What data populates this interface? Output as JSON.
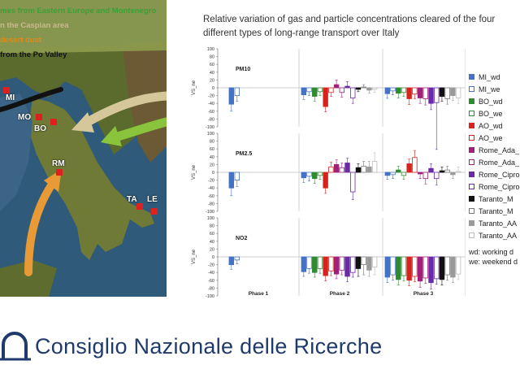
{
  "map_panel": {
    "legend_lines": [
      {
        "text": "mes from Eastern Europe and Montenegro",
        "color": "#3aa034"
      },
      {
        "text": "n the Caspian area",
        "color": "#c9b98f"
      },
      {
        "text": "desert dust",
        "color": "#e08a17"
      },
      {
        "text": " from the Po Valley",
        "color": "#111111"
      }
    ],
    "cities": [
      "MI",
      "MO",
      "BO",
      "RM",
      "TA",
      "LE"
    ],
    "arrow_colors": {
      "eastern_europe": "#8ac43c",
      "caspian": "#d6c79a",
      "desert_dust": "#e79a36",
      "po_valley": "#111111"
    }
  },
  "title": "Relative variation of gas and particle concentrations cleared of the four different types of long-range transport over Italy",
  "footer": {
    "organization": "Consiglio Nazionale delle Ricerche",
    "color": "#1f3a6d"
  },
  "chart_data": {
    "type": "bar",
    "title": "Relative variation of gas and particle concentrations cleared of the four different types of long-range transport over Italy",
    "ylabel": "VS_ne",
    "ylim": [
      -100,
      100
    ],
    "yticks": [
      100,
      80,
      60,
      40,
      20,
      0,
      -20,
      -40,
      -60,
      -80,
      -100
    ],
    "categories": [
      "Phase 1",
      "Phase 2",
      "Phase 3"
    ],
    "panels": [
      {
        "name": "PM10",
        "series": [
          {
            "name": "MI_wd",
            "values": [
              -42,
              -18,
              -15
            ],
            "err": [
              18,
              12,
              12
            ]
          },
          {
            "name": "MI_we",
            "values": [
              -20,
              -10,
              -8
            ],
            "err": [
              15,
              10,
              10
            ]
          },
          {
            "name": "BO_wd",
            "values": [
              null,
              -22,
              -14
            ],
            "err": [
              0,
              12,
              12
            ]
          },
          {
            "name": "BO_we",
            "values": [
              null,
              -10,
              -12
            ],
            "err": [
              0,
              10,
              10
            ]
          },
          {
            "name": "AO_wd",
            "values": [
              null,
              -48,
              -28
            ],
            "err": [
              0,
              14,
              15
            ]
          },
          {
            "name": "AO_we",
            "values": [
              null,
              -12,
              -16
            ],
            "err": [
              0,
              10,
              12
            ]
          },
          {
            "name": "Rome_Ada_wd",
            "values": [
              null,
              8,
              -26
            ],
            "err": [
              0,
              12,
              14
            ]
          },
          {
            "name": "Rome_Ada_we",
            "values": [
              null,
              -12,
              -28
            ],
            "err": [
              0,
              12,
              16
            ]
          },
          {
            "name": "Rome_Cipro_wd",
            "values": [
              null,
              4,
              -40
            ],
            "err": [
              0,
              12,
              16
            ]
          },
          {
            "name": "Rome_Cipro_we",
            "values": [
              null,
              -26,
              -38
            ],
            "err": [
              0,
              14,
              120
            ]
          },
          {
            "name": "Taranto_MV_wd",
            "values": [
              null,
              -4,
              -22
            ],
            "err": [
              0,
              6,
              12
            ]
          },
          {
            "name": "Taranto_MV_we",
            "values": [
              null,
              2,
              -28
            ],
            "err": [
              0,
              6,
              14
            ]
          },
          {
            "name": "Taranto_AA_wd",
            "values": [
              null,
              -6,
              -20
            ],
            "err": [
              0,
              8,
              12
            ]
          },
          {
            "name": "Taranto_AA_we",
            "values": [
              null,
              -4,
              -26
            ],
            "err": [
              0,
              8,
              14
            ]
          }
        ]
      },
      {
        "name": "PM2.5",
        "series": [
          {
            "name": "MI_wd",
            "values": [
              -40,
              -14,
              -8
            ],
            "err": [
              20,
              12,
              10
            ]
          },
          {
            "name": "MI_we",
            "values": [
              -20,
              -10,
              -6
            ],
            "err": [
              16,
              12,
              10
            ]
          },
          {
            "name": "BO_wd",
            "values": [
              null,
              -16,
              6
            ],
            "err": [
              0,
              12,
              10
            ]
          },
          {
            "name": "BO_we",
            "values": [
              null,
              -8,
              -8
            ],
            "err": [
              0,
              10,
              10
            ]
          },
          {
            "name": "AO_wd",
            "values": [
              null,
              -40,
              22
            ],
            "err": [
              0,
              14,
              12
            ]
          },
          {
            "name": "AO_we",
            "values": [
              null,
              14,
              38
            ],
            "err": [
              0,
              12,
              18
            ]
          },
          {
            "name": "Rome_Ada_wd",
            "values": [
              null,
              20,
              -4
            ],
            "err": [
              0,
              12,
              12
            ]
          },
          {
            "name": "Rome_Ada_we",
            "values": [
              null,
              12,
              -16
            ],
            "err": [
              0,
              12,
              14
            ]
          },
          {
            "name": "Rome_Cipro_wd",
            "values": [
              null,
              24,
              10
            ],
            "err": [
              0,
              12,
              12
            ]
          },
          {
            "name": "Rome_Cipro_we",
            "values": [
              null,
              -50,
              -16
            ],
            "err": [
              0,
              20,
              16
            ]
          },
          {
            "name": "Taranto_MV_wd",
            "values": [
              null,
              12,
              4
            ],
            "err": [
              0,
              10,
              10
            ]
          },
          {
            "name": "Taranto_MV_we",
            "values": [
              null,
              16,
              6
            ],
            "err": [
              0,
              12,
              10
            ]
          },
          {
            "name": "Taranto_AA_wd",
            "values": [
              null,
              14,
              -6
            ],
            "err": [
              0,
              14,
              10
            ]
          },
          {
            "name": "Taranto_AA_we",
            "values": [
              null,
              28,
              2
            ],
            "err": [
              0,
              22,
              12
            ]
          }
        ]
      },
      {
        "name": "NO2",
        "series": [
          {
            "name": "MI_wd",
            "values": [
              -20,
              -38,
              -52
            ],
            "err": [
              12,
              12,
              14
            ]
          },
          {
            "name": "MI_we",
            "values": [
              -8,
              -30,
              -46
            ],
            "err": [
              10,
              12,
              14
            ]
          },
          {
            "name": "BO_wd",
            "values": [
              null,
              -40,
              -58
            ],
            "err": [
              0,
              12,
              14
            ]
          },
          {
            "name": "BO_we",
            "values": [
              null,
              -30,
              -48
            ],
            "err": [
              0,
              12,
              14
            ]
          },
          {
            "name": "AO_wd",
            "values": [
              null,
              -48,
              -60
            ],
            "err": [
              0,
              14,
              14
            ]
          },
          {
            "name": "AO_we",
            "values": [
              null,
              -36,
              -50
            ],
            "err": [
              0,
              12,
              14
            ]
          },
          {
            "name": "Rome_Ada_wd",
            "values": [
              null,
              -44,
              -62
            ],
            "err": [
              0,
              12,
              16
            ]
          },
          {
            "name": "Rome_Ada_we",
            "values": [
              null,
              -34,
              -54
            ],
            "err": [
              0,
              12,
              14
            ]
          },
          {
            "name": "Rome_Cipro_wd",
            "values": [
              null,
              -50,
              -66
            ],
            "err": [
              0,
              14,
              16
            ]
          },
          {
            "name": "Rome_Cipro_we",
            "values": [
              null,
              -40,
              -56
            ],
            "err": [
              0,
              12,
              14
            ]
          },
          {
            "name": "Taranto_MV_wd",
            "values": [
              null,
              -30,
              -58
            ],
            "err": [
              0,
              20,
              14
            ]
          },
          {
            "name": "Taranto_MV_we",
            "values": [
              null,
              -20,
              -46
            ],
            "err": [
              0,
              26,
              14
            ]
          },
          {
            "name": "Taranto_AA_wd",
            "values": [
              null,
              -34,
              -52
            ],
            "err": [
              0,
              16,
              14
            ]
          },
          {
            "name": "Taranto_AA_we",
            "values": [
              null,
              -26,
              -44
            ],
            "err": [
              0,
              20,
              14
            ]
          }
        ]
      }
    ],
    "legend": [
      {
        "label": "MI_wd",
        "color": "#4472c4",
        "hollow": false
      },
      {
        "label": "MI_we",
        "color": "#4472c4",
        "hollow": true
      },
      {
        "label": "BO_wd",
        "color": "#2e8b2e",
        "hollow": false
      },
      {
        "label": "BO_we",
        "color": "#2e8b2e",
        "hollow": true
      },
      {
        "label": "AO_wd",
        "color": "#d9221c",
        "hollow": false
      },
      {
        "label": "AO_we",
        "color": "#d9221c",
        "hollow": true
      },
      {
        "label": "Rome_Ada_",
        "color": "#a0207a",
        "hollow": false
      },
      {
        "label": "Rome_Ada_",
        "color": "#a0207a",
        "hollow": true
      },
      {
        "label": "Rome_Cipro",
        "color": "#6a2aa8",
        "hollow": false
      },
      {
        "label": "Rome_Cipro",
        "color": "#6a2aa8",
        "hollow": true
      },
      {
        "label": "Taranto_M",
        "color": "#111111",
        "hollow": false
      },
      {
        "label": "Taranto_M",
        "color": "#777777",
        "hollow": true
      },
      {
        "label": "Taranto_AA",
        "color": "#9a9a9a",
        "hollow": false
      },
      {
        "label": "Taranto_AA",
        "color": "#bcbcbc",
        "hollow": true
      }
    ],
    "legend_notes": [
      "wd: working d",
      "we: weekend d"
    ],
    "legend_position": "right",
    "grid": false
  }
}
